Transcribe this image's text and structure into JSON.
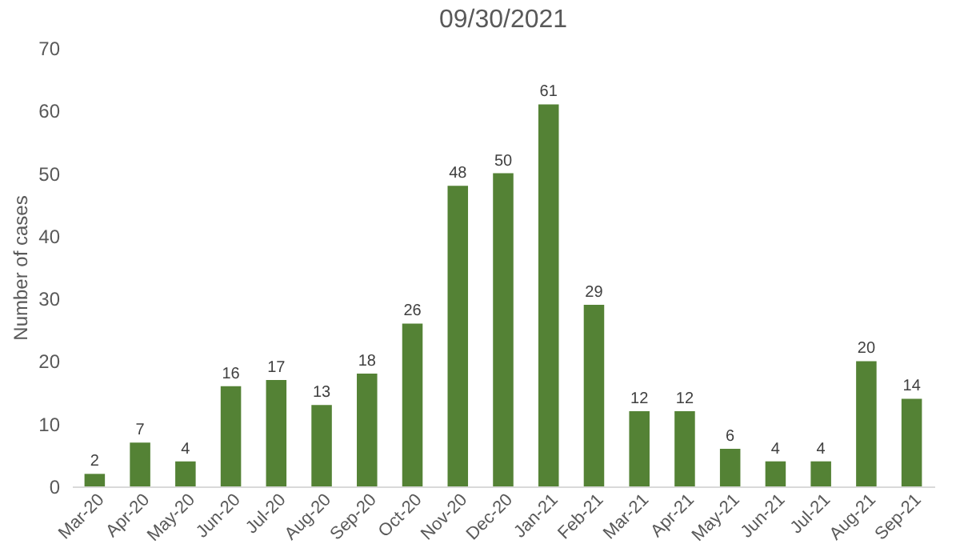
{
  "chart_data": {
    "type": "bar",
    "title": "09/30/2021",
    "ylabel": "Number of cases",
    "categories": [
      "Mar-20",
      "Apr-20",
      "May-20",
      "Jun-20",
      "Jul-20",
      "Aug-20",
      "Sep-20",
      "Oct-20",
      "Nov-20",
      "Dec-20",
      "Jan-21",
      "Feb-21",
      "Mar-21",
      "Apr-21",
      "May-21",
      "Jun-21",
      "Jul-21",
      "Aug-21",
      "Sep-21"
    ],
    "values": [
      2,
      7,
      4,
      16,
      17,
      13,
      18,
      26,
      48,
      50,
      61,
      29,
      12,
      12,
      6,
      4,
      4,
      20,
      14
    ],
    "color": "#548235",
    "ylim": [
      0,
      70
    ],
    "yticks": [
      0,
      10,
      20,
      30,
      40,
      50,
      60,
      70
    ],
    "grid": false,
    "data_labels": true
  }
}
